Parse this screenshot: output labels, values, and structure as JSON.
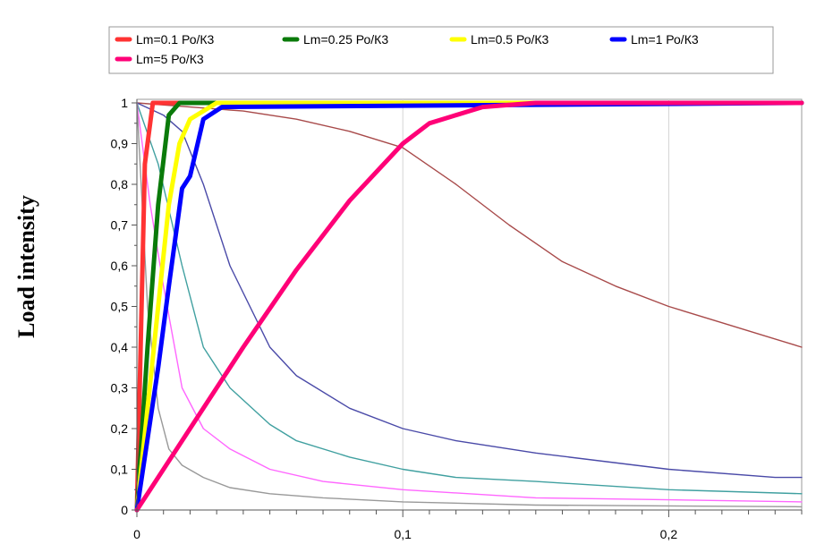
{
  "chart_data": {
    "type": "line",
    "title": "",
    "xlabel": "",
    "ylabel": "Load intensity",
    "xlim": [
      0,
      0.25
    ],
    "ylim": [
      0,
      1
    ],
    "x_ticks": [
      {
        "value": 0,
        "label": "0"
      },
      {
        "value": 0.1,
        "label": "0,1"
      },
      {
        "value": 0.2,
        "label": "0,2"
      }
    ],
    "y_ticks": [
      {
        "value": 0,
        "label": "0"
      },
      {
        "value": 0.1,
        "label": "0,1"
      },
      {
        "value": 0.2,
        "label": "0,2"
      },
      {
        "value": 0.3,
        "label": "0,3"
      },
      {
        "value": 0.4,
        "label": "0,4"
      },
      {
        "value": 0.5,
        "label": "0,5"
      },
      {
        "value": 0.6,
        "label": "0,6"
      },
      {
        "value": 0.7,
        "label": "0,7"
      },
      {
        "value": 0.8,
        "label": "0,8"
      },
      {
        "value": 0.9,
        "label": "0,9"
      },
      {
        "value": 1,
        "label": "1"
      }
    ],
    "grid": "vertical-major",
    "legend_position": "top",
    "series": [
      {
        "name": "Lm=0.1 Ро/К3",
        "color": "#ff3333",
        "in_legend": true,
        "thick": true,
        "x": [
          0,
          0.003,
          0.006,
          0.25
        ],
        "y": [
          0,
          0.85,
          1,
          1
        ]
      },
      {
        "name": "Lm=0.25 Ро/К3",
        "color": "#0a7a0a",
        "in_legend": true,
        "thick": true,
        "x": [
          0,
          0.004,
          0.008,
          0.012,
          0.016,
          0.25
        ],
        "y": [
          0,
          0.4,
          0.75,
          0.97,
          1,
          1
        ]
      },
      {
        "name": "Lm=0.5 Ро/К3",
        "color": "#ffff00",
        "in_legend": true,
        "thick": true,
        "x": [
          0,
          0.008,
          0.012,
          0.016,
          0.02,
          0.025,
          0.03,
          0.25
        ],
        "y": [
          0,
          0.5,
          0.75,
          0.9,
          0.96,
          0.98,
          1,
          1
        ]
      },
      {
        "name": "Lm=1 Ро/К3",
        "color": "#0000ff",
        "in_legend": true,
        "thick": true,
        "x": [
          0,
          0.008,
          0.012,
          0.017,
          0.02,
          0.025,
          0.032,
          0.25
        ],
        "y": [
          0,
          0.35,
          0.55,
          0.79,
          0.82,
          0.96,
          0.99,
          1
        ]
      },
      {
        "name": "Lm=5 Ро/К3",
        "color": "#ff0077",
        "in_legend": true,
        "thick": true,
        "x": [
          0,
          0.02,
          0.04,
          0.06,
          0.08,
          0.1,
          0.11,
          0.12,
          0.13,
          0.14,
          0.15,
          0.25
        ],
        "y": [
          0,
          0.2,
          0.4,
          0.59,
          0.76,
          0.9,
          0.95,
          0.97,
          0.99,
          0.995,
          1,
          1
        ]
      },
      {
        "color": "#a84a4a",
        "in_legend": false,
        "thick": false,
        "x": [
          0,
          0.02,
          0.04,
          0.06,
          0.08,
          0.1,
          0.12,
          0.14,
          0.16,
          0.18,
          0.2,
          0.22,
          0.25
        ],
        "y": [
          1,
          0.99,
          0.98,
          0.96,
          0.93,
          0.89,
          0.8,
          0.7,
          0.61,
          0.55,
          0.5,
          0.46,
          0.4
        ]
      },
      {
        "color": "#4a4aa8",
        "in_legend": false,
        "thick": false,
        "x": [
          0,
          0.01,
          0.017,
          0.025,
          0.035,
          0.05,
          0.06,
          0.08,
          0.1,
          0.12,
          0.15,
          0.2,
          0.24,
          0.25
        ],
        "y": [
          1,
          0.97,
          0.93,
          0.8,
          0.6,
          0.4,
          0.33,
          0.25,
          0.2,
          0.17,
          0.14,
          0.1,
          0.08,
          0.08
        ]
      },
      {
        "color": "#40a0a0",
        "in_legend": false,
        "thick": false,
        "x": [
          0,
          0.008,
          0.017,
          0.025,
          0.035,
          0.05,
          0.06,
          0.08,
          0.1,
          0.12,
          0.15,
          0.2,
          0.25
        ],
        "y": [
          1,
          0.85,
          0.6,
          0.4,
          0.3,
          0.21,
          0.17,
          0.13,
          0.1,
          0.08,
          0.07,
          0.05,
          0.04
        ]
      },
      {
        "color": "#ff66ff",
        "in_legend": false,
        "thick": false,
        "x": [
          0,
          0.005,
          0.01,
          0.017,
          0.025,
          0.035,
          0.05,
          0.07,
          0.1,
          0.15,
          0.2,
          0.25
        ],
        "y": [
          1,
          0.75,
          0.55,
          0.3,
          0.2,
          0.15,
          0.1,
          0.07,
          0.05,
          0.03,
          0.025,
          0.02
        ]
      },
      {
        "color": "#999999",
        "in_legend": false,
        "thick": false,
        "x": [
          0,
          0.004,
          0.008,
          0.012,
          0.017,
          0.025,
          0.035,
          0.05,
          0.07,
          0.1,
          0.15,
          0.25
        ],
        "y": [
          1,
          0.5,
          0.25,
          0.15,
          0.11,
          0.08,
          0.055,
          0.04,
          0.03,
          0.02,
          0.012,
          0.008
        ]
      }
    ]
  }
}
